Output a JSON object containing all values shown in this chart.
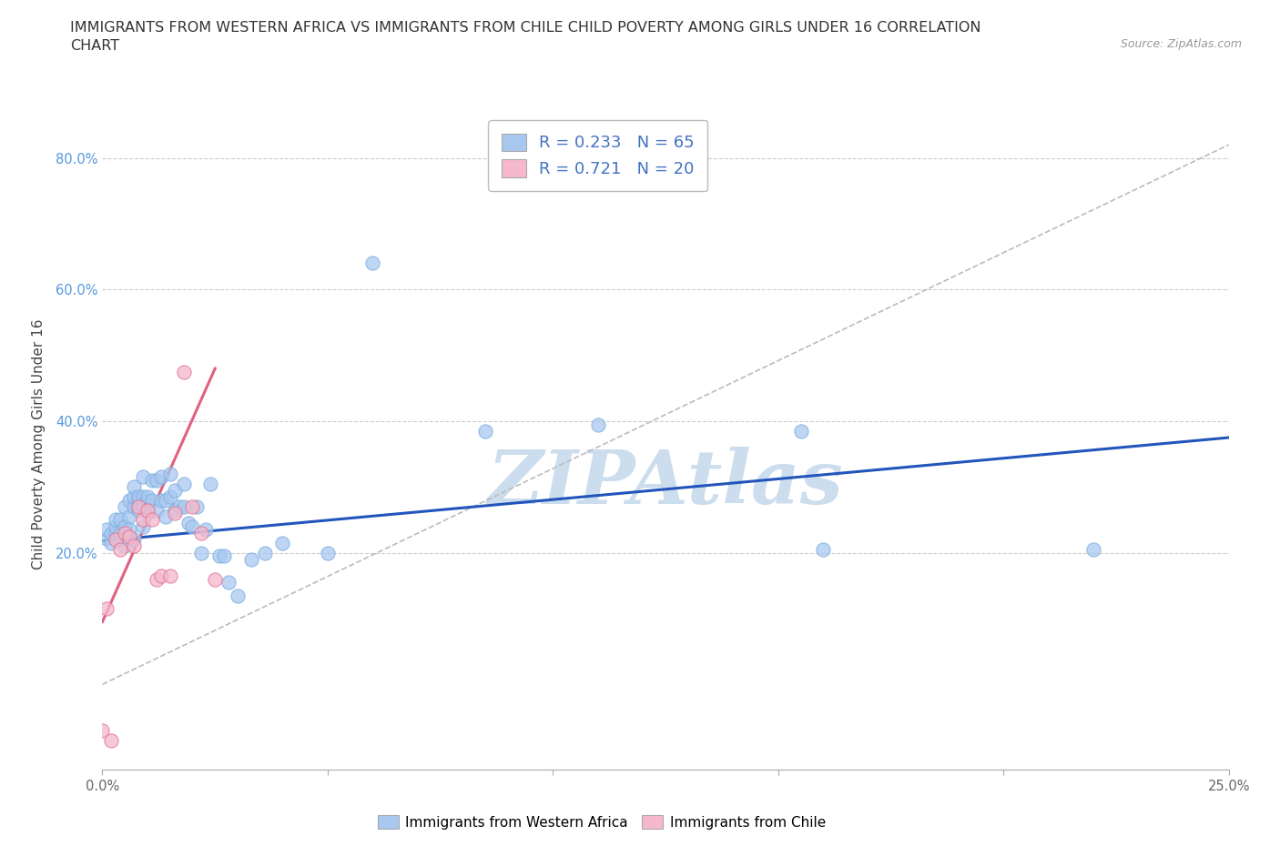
{
  "title": "IMMIGRANTS FROM WESTERN AFRICA VS IMMIGRANTS FROM CHILE CHILD POVERTY AMONG GIRLS UNDER 16 CORRELATION\nCHART",
  "source_text": "Source: ZipAtlas.com",
  "ylabel_text": "Child Poverty Among Girls Under 16",
  "xlim": [
    0.0,
    0.25
  ],
  "ylim": [
    -0.13,
    0.86
  ],
  "xticks": [
    0.0,
    0.05,
    0.1,
    0.15,
    0.2,
    0.25
  ],
  "yticks": [
    0.2,
    0.4,
    0.6,
    0.8
  ],
  "xtick_labels": [
    "0.0%",
    "",
    "",
    "",
    "",
    "25.0%"
  ],
  "ytick_labels": [
    "20.0%",
    "40.0%",
    "60.0%",
    "80.0%"
  ],
  "series_blue": {
    "name": "Immigrants from Western Africa",
    "color": "#A8C8F0",
    "edge_color": "#7AAEE0",
    "R": 0.233,
    "N": 65,
    "x": [
      0.001,
      0.001,
      0.002,
      0.002,
      0.003,
      0.003,
      0.003,
      0.004,
      0.004,
      0.004,
      0.005,
      0.005,
      0.005,
      0.006,
      0.006,
      0.006,
      0.007,
      0.007,
      0.007,
      0.007,
      0.008,
      0.008,
      0.008,
      0.009,
      0.009,
      0.009,
      0.009,
      0.01,
      0.01,
      0.01,
      0.011,
      0.011,
      0.012,
      0.012,
      0.013,
      0.013,
      0.014,
      0.014,
      0.015,
      0.015,
      0.016,
      0.016,
      0.017,
      0.018,
      0.018,
      0.019,
      0.02,
      0.021,
      0.022,
      0.023,
      0.024,
      0.026,
      0.027,
      0.028,
      0.03,
      0.033,
      0.036,
      0.04,
      0.05,
      0.06,
      0.085,
      0.11,
      0.155,
      0.16,
      0.22
    ],
    "y": [
      0.222,
      0.235,
      0.215,
      0.228,
      0.23,
      0.24,
      0.25,
      0.22,
      0.23,
      0.25,
      0.21,
      0.24,
      0.27,
      0.255,
      0.28,
      0.235,
      0.22,
      0.27,
      0.285,
      0.3,
      0.265,
      0.28,
      0.285,
      0.24,
      0.27,
      0.285,
      0.315,
      0.26,
      0.28,
      0.285,
      0.28,
      0.31,
      0.265,
      0.31,
      0.28,
      0.315,
      0.255,
      0.28,
      0.285,
      0.32,
      0.265,
      0.295,
      0.27,
      0.27,
      0.305,
      0.245,
      0.24,
      0.27,
      0.2,
      0.235,
      0.305,
      0.195,
      0.195,
      0.155,
      0.135,
      0.19,
      0.2,
      0.215,
      0.2,
      0.64,
      0.385,
      0.395,
      0.385,
      0.205,
      0.205
    ],
    "line_color": "#2255BB",
    "line_x0": 0.0,
    "line_y0": 0.218,
    "line_x1": 0.25,
    "line_y1": 0.375
  },
  "series_pink": {
    "name": "Immigrants from Chile",
    "color": "#F5B8CC",
    "edge_color": "#E07090",
    "R": 0.721,
    "N": 20,
    "x": [
      0.0,
      0.001,
      0.002,
      0.003,
      0.004,
      0.005,
      0.006,
      0.007,
      0.008,
      0.009,
      0.01,
      0.011,
      0.012,
      0.013,
      0.015,
      0.016,
      0.018,
      0.02,
      0.022,
      0.025
    ],
    "y": [
      -0.07,
      0.115,
      -0.085,
      0.22,
      0.205,
      0.23,
      0.225,
      0.21,
      0.27,
      0.25,
      0.265,
      0.25,
      0.16,
      0.165,
      0.165,
      0.26,
      0.475,
      0.27,
      0.23,
      0.16
    ],
    "line_color": "#E06080",
    "line_x0": 0.0,
    "line_y0": 0.095,
    "line_x1": 0.025,
    "line_y1": 0.48
  },
  "ref_line": {
    "color": "#BBBBBB",
    "style": "--",
    "x0": 0.0,
    "y0": 0.0,
    "x1": 0.25,
    "y1": 0.82
  },
  "watermark_text": "ZIPAtlas",
  "watermark_color": "#CCDDEE",
  "title_fontsize": 11.5,
  "axis_label_fontsize": 11,
  "tick_fontsize": 10.5
}
